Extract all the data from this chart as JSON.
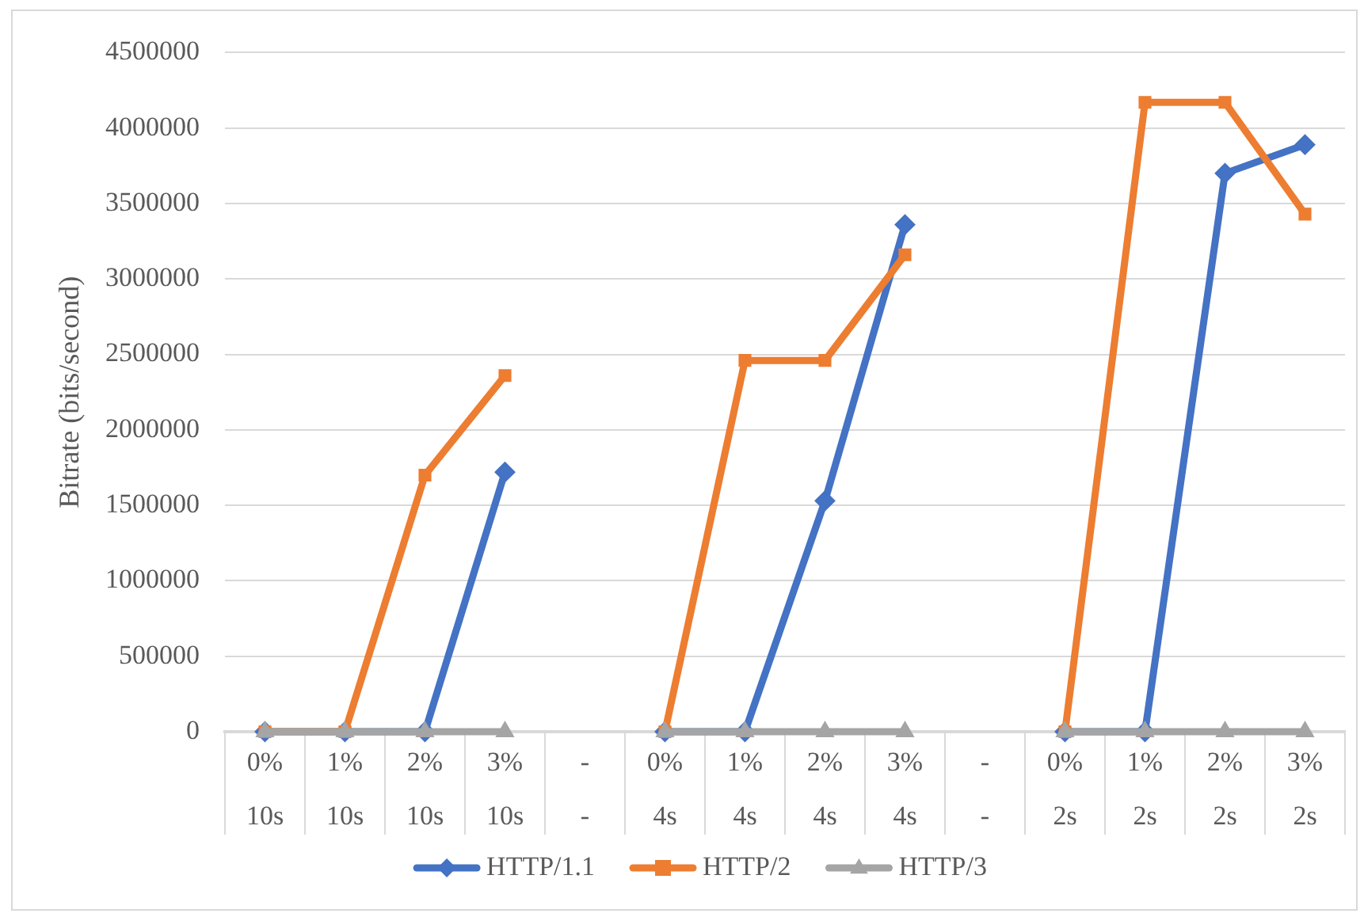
{
  "chart_data": {
    "type": "line",
    "categories": [
      "0%\n10s",
      "1%\n10s",
      "2%\n10s",
      "3%\n10s",
      "-\n-",
      "0%\n4s",
      "1%\n4s",
      "2%\n4s",
      "3%\n4s",
      "-\n-",
      "0%\n2s",
      "1%\n2s",
      "2%\n2s",
      "3%\n2s"
    ],
    "ylabel": "Bitrate (bits/second)",
    "ylim": [
      0,
      4500000
    ],
    "yticks": [
      0,
      500000,
      1000000,
      1500000,
      2000000,
      2500000,
      3000000,
      3500000,
      4000000,
      4500000
    ],
    "grid": "y",
    "legend": "bottom",
    "line_style": "solid",
    "series": [
      {
        "name": "HTTP/1.1",
        "color": "#4472c4",
        "marker": "diamond",
        "values": [
          0,
          0,
          0,
          1720000,
          null,
          0,
          0,
          1530000,
          3360000,
          null,
          0,
          0,
          3700000,
          3890000
        ]
      },
      {
        "name": "HTTP/2",
        "color": "#ed7d31",
        "marker": "square",
        "values": [
          0,
          0,
          1700000,
          2360000,
          null,
          0,
          2460000,
          2460000,
          3160000,
          null,
          0,
          4170000,
          4170000,
          3430000
        ]
      },
      {
        "name": "HTTP/3",
        "color": "#a5a5a5",
        "marker": "triangle",
        "values": [
          0,
          0,
          0,
          0,
          null,
          0,
          0,
          0,
          0,
          null,
          0,
          0,
          0,
          0
        ]
      }
    ]
  }
}
